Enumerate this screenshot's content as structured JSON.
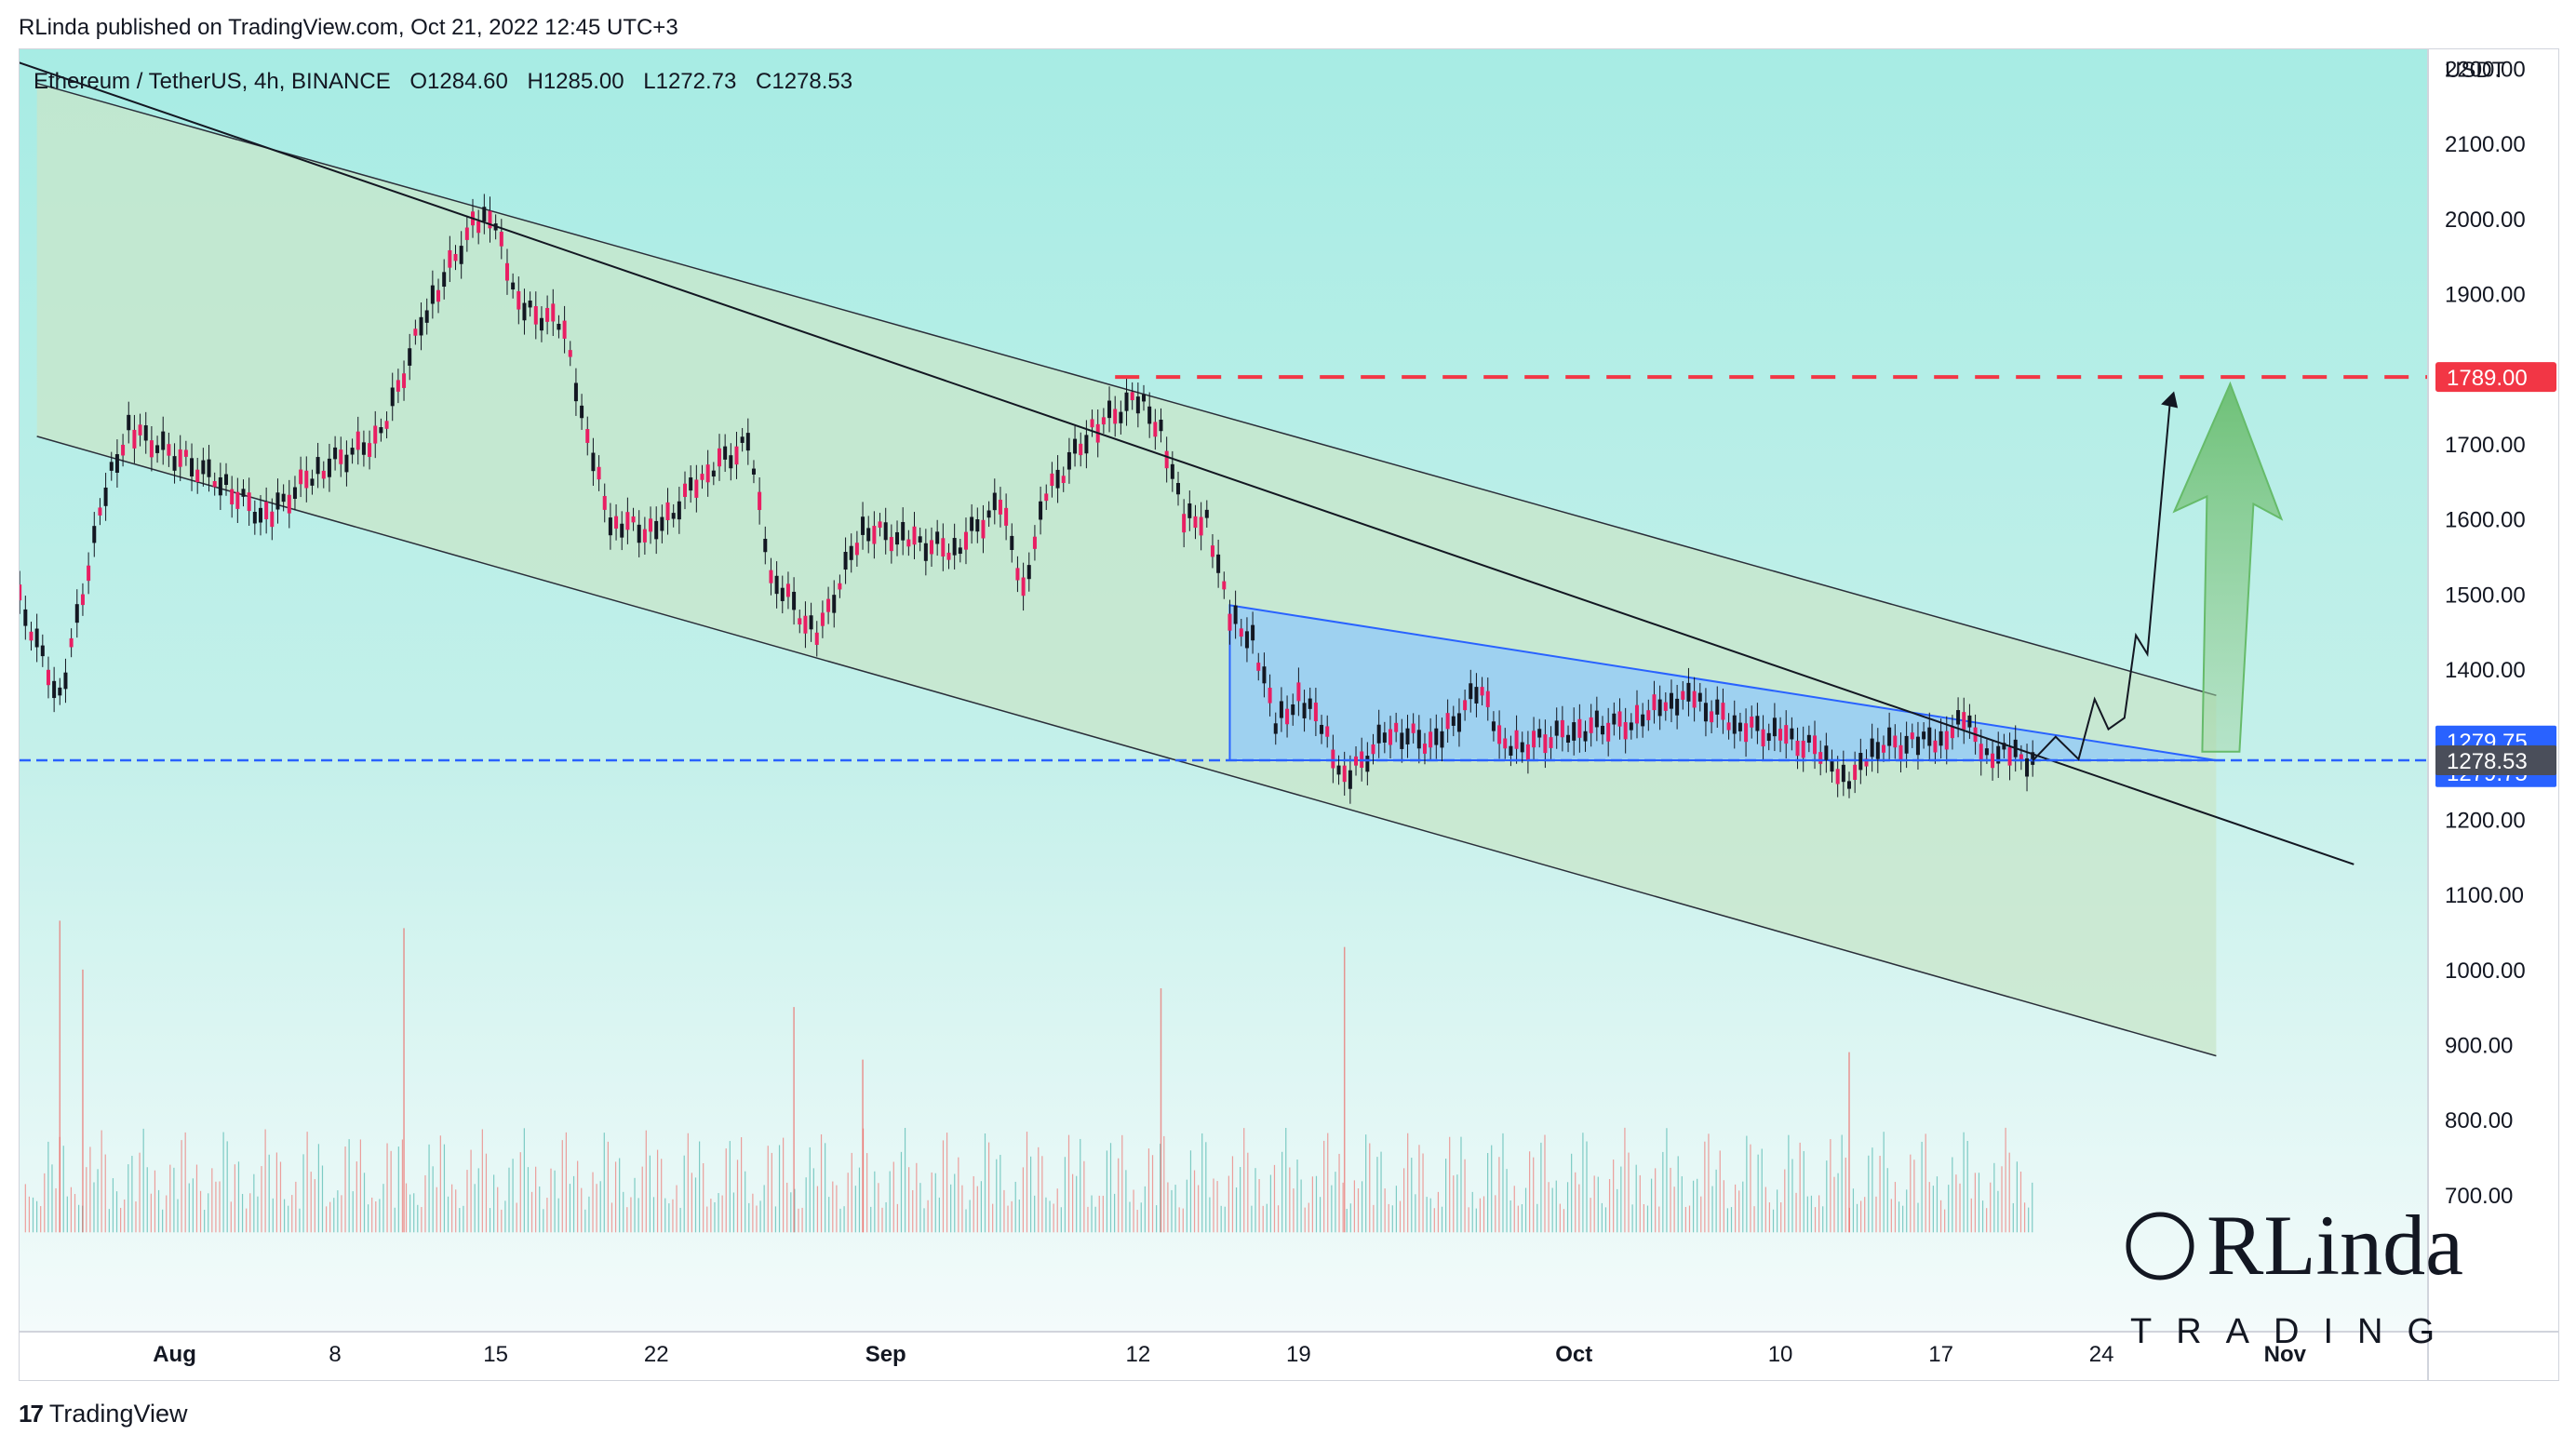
{
  "header": {
    "publisher": "RLinda published on TradingView.com, Oct 21, 2022 12:45 UTC+3"
  },
  "symbol": {
    "name": "Ethereum / TetherUS, 4h, BINANCE",
    "open": "O1284.60",
    "high": "H1285.00",
    "low": "L1272.73",
    "close": "C1278.53"
  },
  "watermark": {
    "line1": "RLinda",
    "line2": "TRADING"
  },
  "footer": {
    "brand": "TradingView",
    "logo": "17"
  },
  "chart_data": {
    "type": "candlestick",
    "title": "Ethereum / TetherUS, 4h, BINANCE",
    "y_unit": "USDT",
    "ylim": [
      650,
      2260
    ],
    "x_range": [
      "2022-07-25",
      "2022-11-05"
    ],
    "x_ticks": [
      {
        "label": "Aug",
        "date": "2022-08-01"
      },
      {
        "label": "8",
        "date": "2022-08-08"
      },
      {
        "label": "15",
        "date": "2022-08-15"
      },
      {
        "label": "22",
        "date": "2022-08-22"
      },
      {
        "label": "Sep",
        "date": "2022-09-01"
      },
      {
        "label": "12",
        "date": "2022-09-12"
      },
      {
        "label": "19",
        "date": "2022-09-19"
      },
      {
        "label": "Oct",
        "date": "2022-10-01"
      },
      {
        "label": "10",
        "date": "2022-10-10"
      },
      {
        "label": "17",
        "date": "2022-10-17"
      },
      {
        "label": "24",
        "date": "2022-10-24"
      },
      {
        "label": "Nov",
        "date": "2022-11-01"
      }
    ],
    "y_ticks": [
      "2200.00",
      "2100.00",
      "2000.00",
      "1900.00",
      "1700.00",
      "1600.00",
      "1500.00",
      "1400.00",
      "1200.00",
      "1100.00",
      "1000.00",
      "900.00",
      "800.00",
      "700.00"
    ],
    "price_path": [
      {
        "date": "2022-07-25",
        "close": 1510
      },
      {
        "date": "2022-07-27",
        "close": 1360
      },
      {
        "date": "2022-07-29",
        "close": 1640
      },
      {
        "date": "2022-07-30",
        "close": 1720
      },
      {
        "date": "2022-08-03",
        "close": 1650
      },
      {
        "date": "2022-08-05",
        "close": 1600
      },
      {
        "date": "2022-08-07",
        "close": 1660
      },
      {
        "date": "2022-08-10",
        "close": 1710
      },
      {
        "date": "2022-08-12",
        "close": 1880
      },
      {
        "date": "2022-08-14",
        "close": 1990
      },
      {
        "date": "2022-08-15",
        "close": 2000
      },
      {
        "date": "2022-08-16",
        "close": 1880
      },
      {
        "date": "2022-08-18",
        "close": 1860
      },
      {
        "date": "2022-08-19",
        "close": 1700
      },
      {
        "date": "2022-08-20",
        "close": 1600
      },
      {
        "date": "2022-08-22",
        "close": 1580
      },
      {
        "date": "2022-08-24",
        "close": 1660
      },
      {
        "date": "2022-08-26",
        "close": 1700
      },
      {
        "date": "2022-08-27",
        "close": 1530
      },
      {
        "date": "2022-08-29",
        "close": 1440
      },
      {
        "date": "2022-08-31",
        "close": 1590
      },
      {
        "date": "2022-09-02",
        "close": 1570
      },
      {
        "date": "2022-09-04",
        "close": 1560
      },
      {
        "date": "2022-09-06",
        "close": 1620
      },
      {
        "date": "2022-09-07",
        "close": 1510
      },
      {
        "date": "2022-09-08",
        "close": 1630
      },
      {
        "date": "2022-09-10",
        "close": 1720
      },
      {
        "date": "2022-09-12",
        "close": 1760
      },
      {
        "date": "2022-09-13",
        "close": 1720
      },
      {
        "date": "2022-09-14",
        "close": 1600
      },
      {
        "date": "2022-09-15",
        "close": 1600
      },
      {
        "date": "2022-09-16",
        "close": 1470
      },
      {
        "date": "2022-09-17",
        "close": 1440
      },
      {
        "date": "2022-09-18",
        "close": 1330
      },
      {
        "date": "2022-09-19",
        "close": 1360
      },
      {
        "date": "2022-09-20",
        "close": 1330
      },
      {
        "date": "2022-09-21",
        "close": 1250
      },
      {
        "date": "2022-09-23",
        "close": 1320
      },
      {
        "date": "2022-09-25",
        "close": 1300
      },
      {
        "date": "2022-09-27",
        "close": 1380
      },
      {
        "date": "2022-09-28",
        "close": 1290
      },
      {
        "date": "2022-10-01",
        "close": 1320
      },
      {
        "date": "2022-10-04",
        "close": 1330
      },
      {
        "date": "2022-10-05",
        "close": 1360
      },
      {
        "date": "2022-10-06",
        "close": 1360
      },
      {
        "date": "2022-10-08",
        "close": 1330
      },
      {
        "date": "2022-10-10",
        "close": 1310
      },
      {
        "date": "2022-10-12",
        "close": 1290
      },
      {
        "date": "2022-10-13",
        "close": 1240
      },
      {
        "date": "2022-10-14",
        "close": 1300
      },
      {
        "date": "2022-10-16",
        "close": 1300
      },
      {
        "date": "2022-10-17",
        "close": 1310
      },
      {
        "date": "2022-10-18",
        "close": 1330
      },
      {
        "date": "2022-10-19",
        "close": 1290
      },
      {
        "date": "2022-10-20",
        "close": 1285
      },
      {
        "date": "2022-10-21",
        "close": 1278.53
      }
    ],
    "volume": {
      "spikes": [
        {
          "date": "2022-07-27",
          "value": 1065
        },
        {
          "date": "2022-07-28",
          "value": 1000
        },
        {
          "date": "2022-08-11",
          "value": 1055
        },
        {
          "date": "2022-08-28",
          "value": 950
        },
        {
          "date": "2022-08-31",
          "value": 880
        },
        {
          "date": "2022-09-13",
          "value": 975
        },
        {
          "date": "2022-09-21",
          "value": 1030
        },
        {
          "date": "2022-10-13",
          "value": 890
        }
      ]
    },
    "channel": {
      "upper_left": {
        "date": "2022-07-26",
        "price": 2180
      },
      "upper_right": {
        "date": "2022-10-29",
        "price": 1365
      },
      "lower_left": {
        "date": "2022-07-26",
        "price": 1710
      },
      "lower_right": {
        "date": "2022-10-29",
        "price": 885
      }
    },
    "trendline": {
      "start": {
        "date": "2022-07-25",
        "price": 2210
      },
      "end": {
        "date": "2022-11-04",
        "price": 1140
      }
    },
    "triangle": {
      "start_date": "2022-09-16",
      "end_date": "2022-10-29",
      "top_start": 1485,
      "top_end": 1278.53,
      "bottom": 1278.53
    },
    "resistance": {
      "price": 1789.0,
      "label": "1789.00",
      "color": "#f23645"
    },
    "support": {
      "price": 1278.53,
      "color": "#2962ff"
    },
    "price_tags": [
      {
        "label": "1279.75",
        "color": "#2962ff"
      },
      {
        "label": "1279.75",
        "color": "#2962ff"
      },
      {
        "label": "1278.53",
        "color": "#4a4e5a"
      }
    ],
    "forecast_path": [
      {
        "date": "2022-10-21",
        "price": 1278
      },
      {
        "date": "2022-10-22",
        "price": 1310
      },
      {
        "date": "2022-10-23",
        "price": 1280
      },
      {
        "date": "2022-10-23.7",
        "price": 1360
      },
      {
        "date": "2022-10-24.3",
        "price": 1320
      },
      {
        "date": "2022-10-25",
        "price": 1335
      },
      {
        "date": "2022-10-25.5",
        "price": 1445
      },
      {
        "date": "2022-10-26",
        "price": 1420
      },
      {
        "date": "2022-10-27",
        "price": 1760
      }
    ],
    "colors": {
      "up": "#26a69a",
      "down": "#e91e63",
      "channel_fill": "#c8e6c9",
      "triangle_fill": "#90caf9"
    }
  }
}
